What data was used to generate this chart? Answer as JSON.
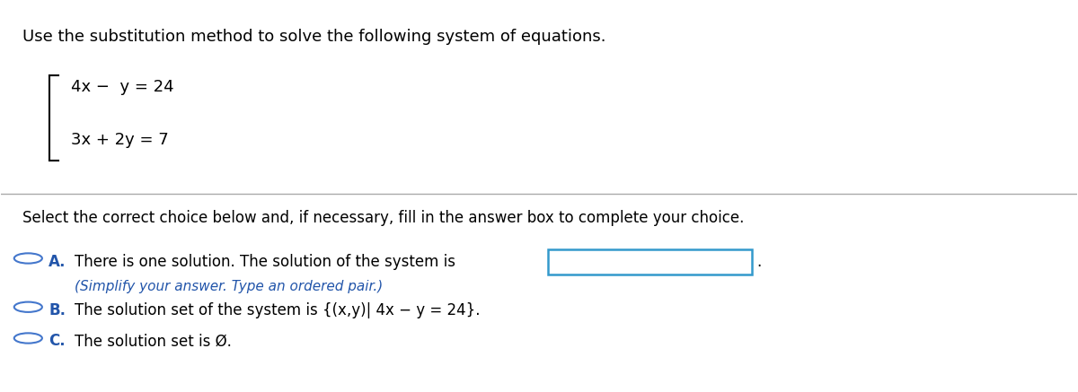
{
  "title_text": "Use the substitution method to solve the following system of equations.",
  "eq1": "4x −  y = 24",
  "eq2": "3x + 2y = 7",
  "select_text": "Select the correct choice below and, if necessary, fill in the answer box to complete your choice.",
  "option_a_label": "A.",
  "option_a_text": "There is one solution. The solution of the system is",
  "option_a_subtext": "(Simplify your answer. Type an ordered pair.)",
  "option_b_label": "B.",
  "option_b_text": "The solution set of the system is {(x,y)| 4x − y = 24}.",
  "option_c_label": "C.",
  "option_c_text": "The solution set is Ø.",
  "bg_color": "#ffffff",
  "text_color": "#000000",
  "blue_color": "#2255aa",
  "circle_color": "#4477cc",
  "box_color": "#3399cc",
  "divider_color": "#aaaaaa",
  "font_size_title": 13,
  "font_size_eq": 13,
  "font_size_select": 12,
  "font_size_option": 12,
  "font_size_sub": 11
}
